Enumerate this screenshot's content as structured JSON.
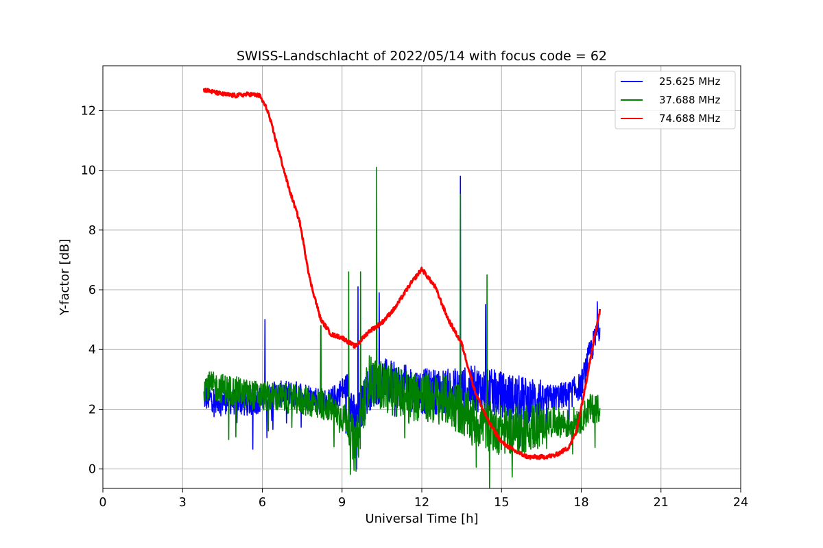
{
  "chart_data": {
    "type": "line",
    "title": "SWISS-Landschlacht of 2022/05/14 with focus code = 62",
    "xlabel": "Universal Time [h]",
    "ylabel": "Y-factor [dB]",
    "xlim": [
      0,
      24
    ],
    "ylim": [
      -0.65,
      13.5
    ],
    "xticks": [
      0,
      3,
      6,
      9,
      12,
      15,
      18,
      21,
      24
    ],
    "yticks": [
      0,
      2,
      4,
      6,
      8,
      10,
      12
    ],
    "grid": true,
    "legend_position": "top-right",
    "series": [
      {
        "name": "25.625 MHz",
        "color": "#0000ff",
        "x": [
          3.8,
          4.5,
          5.5,
          6.5,
          7.5,
          8.5,
          9.2,
          9.5,
          10.0,
          10.5,
          11.0,
          12.0,
          13.0,
          14.0,
          15.0,
          16.0,
          17.0,
          17.5,
          18.0,
          18.3,
          18.7
        ],
        "y": [
          2.4,
          2.3,
          2.2,
          2.5,
          2.5,
          2.2,
          2.8,
          1.5,
          2.7,
          3.0,
          2.8,
          2.6,
          2.6,
          2.7,
          2.5,
          2.3,
          2.4,
          2.5,
          2.8,
          3.8,
          4.8
        ],
        "spikes": [
          [
            6.1,
            5.0
          ],
          [
            9.6,
            6.1
          ],
          [
            9.55,
            0.0
          ],
          [
            10.4,
            5.9
          ],
          [
            13.45,
            9.8
          ],
          [
            14.4,
            5.5
          ],
          [
            18.6,
            5.6
          ]
        ]
      },
      {
        "name": "37.688 MHz",
        "color": "#008000",
        "x": [
          3.8,
          4.5,
          5.5,
          6.5,
          7.5,
          8.5,
          9.2,
          9.5,
          10.0,
          10.5,
          11.0,
          12.0,
          13.0,
          14.0,
          15.0,
          16.0,
          17.0,
          17.5,
          18.0,
          18.3,
          18.7
        ],
        "y": [
          2.8,
          2.7,
          2.5,
          2.4,
          2.3,
          2.1,
          1.6,
          0.6,
          3.0,
          2.8,
          2.6,
          2.4,
          2.3,
          1.6,
          1.3,
          1.4,
          1.6,
          1.5,
          1.7,
          2.0,
          2.1
        ],
        "spikes": [
          [
            8.2,
            4.8
          ],
          [
            9.25,
            6.6
          ],
          [
            9.7,
            6.6
          ],
          [
            10.3,
            10.1
          ],
          [
            13.45,
            9.2
          ],
          [
            14.45,
            6.5
          ]
        ]
      },
      {
        "name": "74.688 MHz",
        "color": "#ff0000",
        "x": [
          3.8,
          4.5,
          5.0,
          5.5,
          5.9,
          6.2,
          6.6,
          7.0,
          7.4,
          7.8,
          8.2,
          8.6,
          9.0,
          9.5,
          10.0,
          10.5,
          11.0,
          11.5,
          12.0,
          12.5,
          13.0,
          13.5,
          14.0,
          14.5,
          15.0,
          15.5,
          16.0,
          16.5,
          17.0,
          17.5,
          17.8,
          18.1,
          18.4,
          18.7
        ],
        "y": [
          12.7,
          12.55,
          12.5,
          12.55,
          12.5,
          12.0,
          10.7,
          9.4,
          8.3,
          6.3,
          5.0,
          4.5,
          4.4,
          4.1,
          4.6,
          4.9,
          5.4,
          6.1,
          6.7,
          6.1,
          5.0,
          4.2,
          2.6,
          1.6,
          0.9,
          0.6,
          0.4,
          0.4,
          0.45,
          0.7,
          1.2,
          2.5,
          4.0,
          5.3
        ]
      }
    ]
  }
}
